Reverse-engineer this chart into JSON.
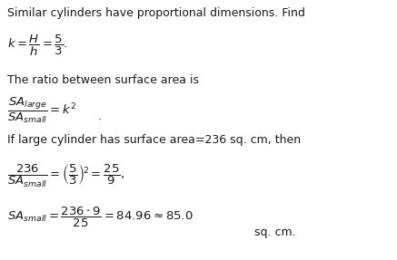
{
  "bg_color": "#ffffff",
  "text_color": "#1a1a1a",
  "figsize": [
    4.37,
    2.87
  ],
  "dpi": 100,
  "line1": "Similar cylinders have proportional dimensions. Find",
  "line3": "The ratio between surface area is",
  "line5": "If large cylinder has surface area=236 sq. cm, then",
  "line7_unit": "sq. cm.",
  "fs_text": 9.0,
  "fs_math": 9.5
}
